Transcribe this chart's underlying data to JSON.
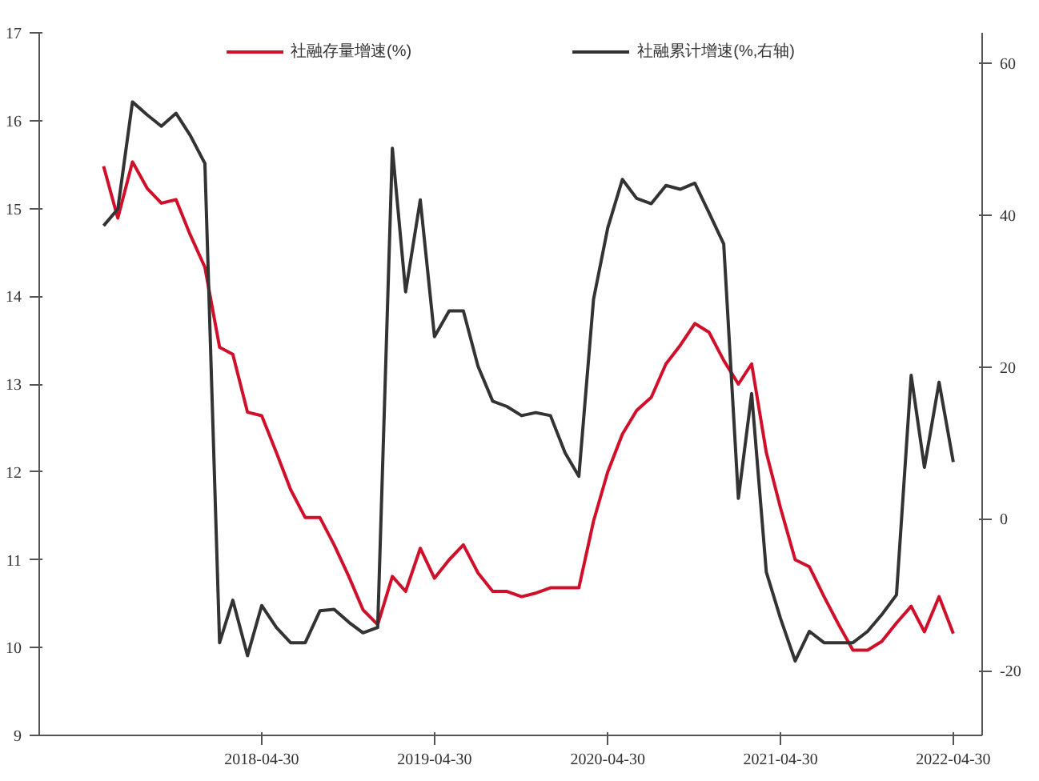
{
  "chart_data": {
    "type": "line",
    "x": [
      "2017-05-31",
      "2017-06-30",
      "2017-07-31",
      "2017-08-31",
      "2017-09-30",
      "2017-10-31",
      "2017-11-30",
      "2017-12-31",
      "2018-01-31",
      "2018-02-28",
      "2018-03-31",
      "2018-04-30",
      "2018-05-31",
      "2018-06-30",
      "2018-07-31",
      "2018-08-31",
      "2018-09-30",
      "2018-10-31",
      "2018-11-30",
      "2018-12-31",
      "2019-01-31",
      "2019-02-28",
      "2019-03-31",
      "2019-04-30",
      "2019-05-31",
      "2019-06-30",
      "2019-07-31",
      "2019-08-31",
      "2019-09-30",
      "2019-10-31",
      "2019-11-30",
      "2019-12-31",
      "2020-01-31",
      "2020-02-29",
      "2020-03-31",
      "2020-04-30",
      "2020-05-31",
      "2020-06-30",
      "2020-07-31",
      "2020-08-31",
      "2020-09-30",
      "2020-10-31",
      "2020-11-30",
      "2020-12-31",
      "2021-01-31",
      "2021-02-28",
      "2021-03-31",
      "2021-04-30",
      "2021-05-31",
      "2021-06-30",
      "2021-07-31",
      "2021-08-31",
      "2021-09-30",
      "2021-10-31",
      "2021-11-30",
      "2021-12-31",
      "2022-01-31",
      "2022-02-28",
      "2022-03-31",
      "2022-04-30"
    ],
    "series": [
      {
        "name": "社融存量增速(%)",
        "color": "#d0102a",
        "values": [
          15.48,
          14.89,
          15.53,
          15.23,
          15.06,
          15.1,
          14.7,
          14.33,
          13.42,
          13.34,
          12.68,
          12.64,
          12.22,
          11.8,
          11.48,
          11.48,
          11.17,
          10.81,
          10.43,
          10.26,
          10.81,
          10.64,
          11.13,
          10.79,
          11.0,
          11.17,
          10.85,
          10.64,
          10.64,
          10.58,
          10.62,
          10.68,
          10.68,
          10.68,
          11.44,
          12.0,
          12.43,
          12.7,
          12.85,
          13.23,
          13.44,
          13.69,
          13.59,
          13.27,
          13.0,
          13.23,
          12.22,
          11.59,
          11.0,
          10.92,
          10.58,
          10.26,
          9.97,
          9.97,
          10.07,
          10.28,
          10.47,
          10.18,
          10.58,
          10.16
        ]
      },
      {
        "name": "社融累计增速(%,右轴)",
        "color": "#333333",
        "axis": "y2",
        "values": [
          38.6,
          40.8,
          54.9,
          53.2,
          51.7,
          53.4,
          50.5,
          46.8,
          -16.3,
          -10.7,
          -18,
          -11.4,
          -14.3,
          -16.3,
          -16.3,
          -12.1,
          -11.9,
          -13.6,
          -15,
          -14.3,
          48.8,
          29.9,
          42,
          24,
          27.4,
          27.4,
          20.1,
          15.5,
          14.8,
          13.6,
          14,
          13.6,
          8.7,
          5.6,
          28.9,
          38.3,
          44.7,
          42.2,
          41.5,
          43.9,
          43.4,
          44.2,
          40.3,
          36.2,
          2.7,
          16.5,
          -7,
          -13.1,
          -18.7,
          -14.8,
          -16.3,
          -16.3,
          -16.3,
          -14.8,
          -12.6,
          -10,
          18.9,
          6.8,
          18,
          7.5
        ]
      }
    ],
    "xlim": [
      "2017-01-15",
      "2022-06-30"
    ],
    "xticks": [
      "2018-04-30",
      "2019-04-30",
      "2020-04-30",
      "2021-04-30",
      "2022-04-30"
    ],
    "ylim": [
      9,
      17
    ],
    "yticks": [
      9,
      10,
      11,
      12,
      13,
      14,
      15,
      16,
      17
    ],
    "y2lim": [
      -28.5,
      64
    ],
    "y2ticks": [
      -20,
      0,
      20,
      40,
      60
    ],
    "grid": false,
    "legend": "top",
    "marker": "none",
    "line_style": "solid"
  }
}
